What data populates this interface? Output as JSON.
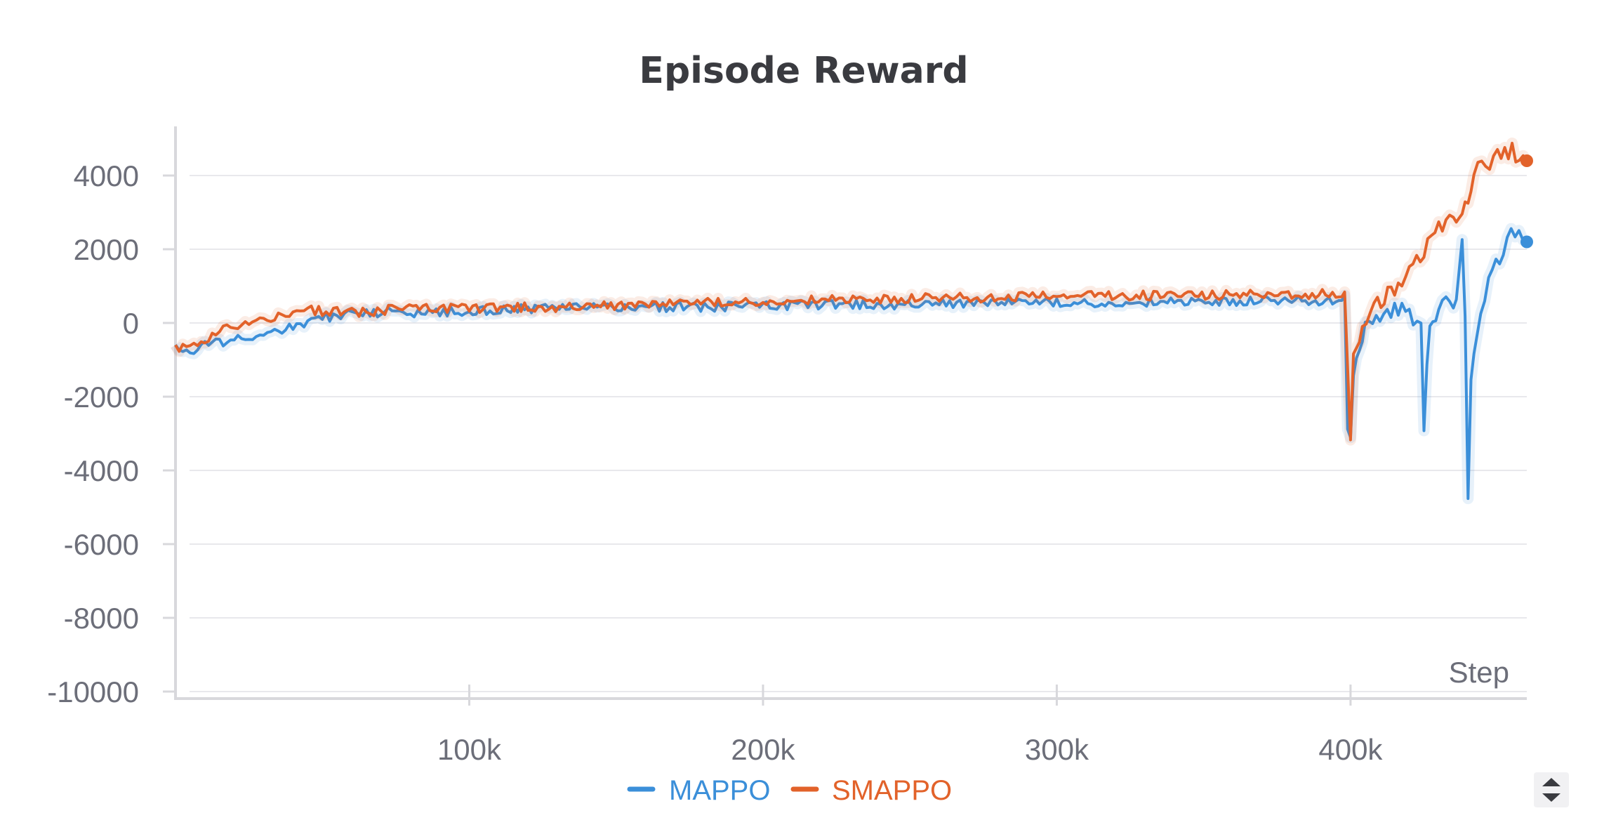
{
  "colors": {
    "mappo": "#3b8fd9",
    "smappo": "#e2622a",
    "grid": "#e8e8ec",
    "axis": "#d8d8dc",
    "text": "#6c6e79",
    "title": "#3a3b40"
  },
  "icons": {
    "scroll": "up-down-arrows-icon"
  },
  "chart_data": {
    "type": "line",
    "title": "Episode Reward",
    "xlabel": "Step",
    "ylabel": "",
    "xlim": [
      0,
      460000
    ],
    "ylim": [
      -10000,
      5000
    ],
    "x_ticks": [
      100000,
      200000,
      300000,
      400000
    ],
    "x_tick_labels": [
      "100k",
      "200k",
      "300k",
      "400k"
    ],
    "y_ticks": [
      4000,
      2000,
      0,
      -2000,
      -4000,
      -6000,
      -8000,
      -10000
    ],
    "y_tick_labels": [
      "4000",
      "2000",
      "0",
      "-2000",
      "-4000",
      "-6000",
      "-8000",
      "-10000"
    ],
    "grid": true,
    "legend_position": "bottom-center",
    "series": [
      {
        "name": "MAPPO",
        "color": "#3b8fd9",
        "points": [
          [
            0,
            -700
          ],
          [
            5000,
            -800
          ],
          [
            10000,
            -600
          ],
          [
            20000,
            -450
          ],
          [
            30000,
            -300
          ],
          [
            40000,
            -100
          ],
          [
            50000,
            150
          ],
          [
            60000,
            250
          ],
          [
            70000,
            300
          ],
          [
            80000,
            250
          ],
          [
            90000,
            300
          ],
          [
            100000,
            320
          ],
          [
            120000,
            380
          ],
          [
            140000,
            420
          ],
          [
            160000,
            430
          ],
          [
            180000,
            440
          ],
          [
            200000,
            460
          ],
          [
            220000,
            480
          ],
          [
            240000,
            500
          ],
          [
            260000,
            520
          ],
          [
            280000,
            550
          ],
          [
            300000,
            560
          ],
          [
            320000,
            560
          ],
          [
            340000,
            580
          ],
          [
            360000,
            600
          ],
          [
            380000,
            600
          ],
          [
            395000,
            620
          ],
          [
            398000,
            700
          ],
          [
            399000,
            -2800
          ],
          [
            400000,
            -3000
          ],
          [
            401000,
            -1500
          ],
          [
            403000,
            -500
          ],
          [
            405000,
            -200
          ],
          [
            410000,
            200
          ],
          [
            415000,
            300
          ],
          [
            420000,
            300
          ],
          [
            424000,
            -100
          ],
          [
            425000,
            -2800
          ],
          [
            427000,
            0
          ],
          [
            430000,
            300
          ],
          [
            435000,
            600
          ],
          [
            437000,
            1200
          ],
          [
            438000,
            2100
          ],
          [
            439000,
            300
          ],
          [
            440000,
            -4800
          ],
          [
            441000,
            -1500
          ],
          [
            443000,
            -600
          ],
          [
            447000,
            1200
          ],
          [
            452000,
            2000
          ],
          [
            456000,
            2500
          ],
          [
            460000,
            2200
          ]
        ]
      },
      {
        "name": "SMAPPO",
        "color": "#e2622a",
        "points": [
          [
            0,
            -650
          ],
          [
            5000,
            -700
          ],
          [
            10000,
            -550
          ],
          [
            15000,
            -200
          ],
          [
            25000,
            -50
          ],
          [
            35000,
            200
          ],
          [
            45000,
            350
          ],
          [
            55000,
            300
          ],
          [
            65000,
            300
          ],
          [
            75000,
            380
          ],
          [
            90000,
            400
          ],
          [
            100000,
            380
          ],
          [
            120000,
            420
          ],
          [
            140000,
            450
          ],
          [
            160000,
            500
          ],
          [
            180000,
            560
          ],
          [
            200000,
            600
          ],
          [
            220000,
            640
          ],
          [
            240000,
            660
          ],
          [
            260000,
            680
          ],
          [
            280000,
            700
          ],
          [
            300000,
            720
          ],
          [
            320000,
            740
          ],
          [
            340000,
            740
          ],
          [
            360000,
            760
          ],
          [
            380000,
            780
          ],
          [
            395000,
            800
          ],
          [
            398000,
            800
          ],
          [
            400000,
            -3200
          ],
          [
            401000,
            -1000
          ],
          [
            404000,
            -300
          ],
          [
            408000,
            400
          ],
          [
            415000,
            900
          ],
          [
            420000,
            1400
          ],
          [
            425000,
            2000
          ],
          [
            430000,
            2600
          ],
          [
            435000,
            2800
          ],
          [
            438000,
            3100
          ],
          [
            440000,
            3500
          ],
          [
            442000,
            4000
          ],
          [
            446000,
            4300
          ],
          [
            450000,
            4500
          ],
          [
            455000,
            4600
          ],
          [
            460000,
            4400
          ]
        ]
      }
    ]
  }
}
